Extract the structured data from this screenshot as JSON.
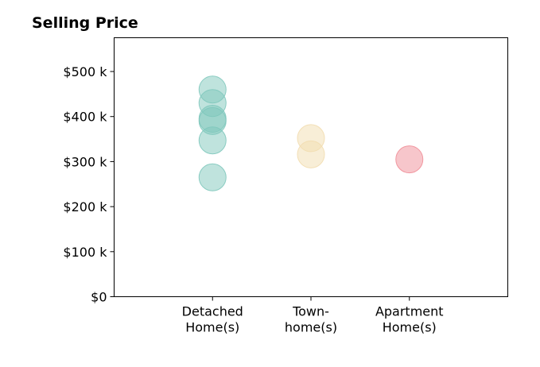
{
  "chart_data": {
    "type": "scatter",
    "title": "Selling Price",
    "xlabel": "",
    "ylabel": "",
    "categories": [
      [
        "Detached",
        "Home(s)"
      ],
      [
        "Town-",
        "home(s)"
      ],
      [
        "Apartment",
        "Home(s)"
      ]
    ],
    "ylim": [
      0,
      575000
    ],
    "yticks": [
      0,
      100000,
      200000,
      300000,
      400000,
      500000
    ],
    "ytick_labels": [
      "$0",
      "$100 k",
      "$200 k",
      "$300 k",
      "$400 k",
      "$500 k"
    ],
    "xlim": [
      -1,
      3
    ],
    "grid": false,
    "legend": "none",
    "series": [
      {
        "color": "#7fc8bc",
        "category_index": 0,
        "values": [
          460000,
          430000,
          395000,
          390000,
          347000,
          265000
        ]
      },
      {
        "color": "#f2ddb0",
        "category_index": 1,
        "values": [
          352000,
          316000
        ]
      },
      {
        "color": "#f08e98",
        "category_index": 2,
        "values": [
          305000
        ]
      }
    ]
  }
}
